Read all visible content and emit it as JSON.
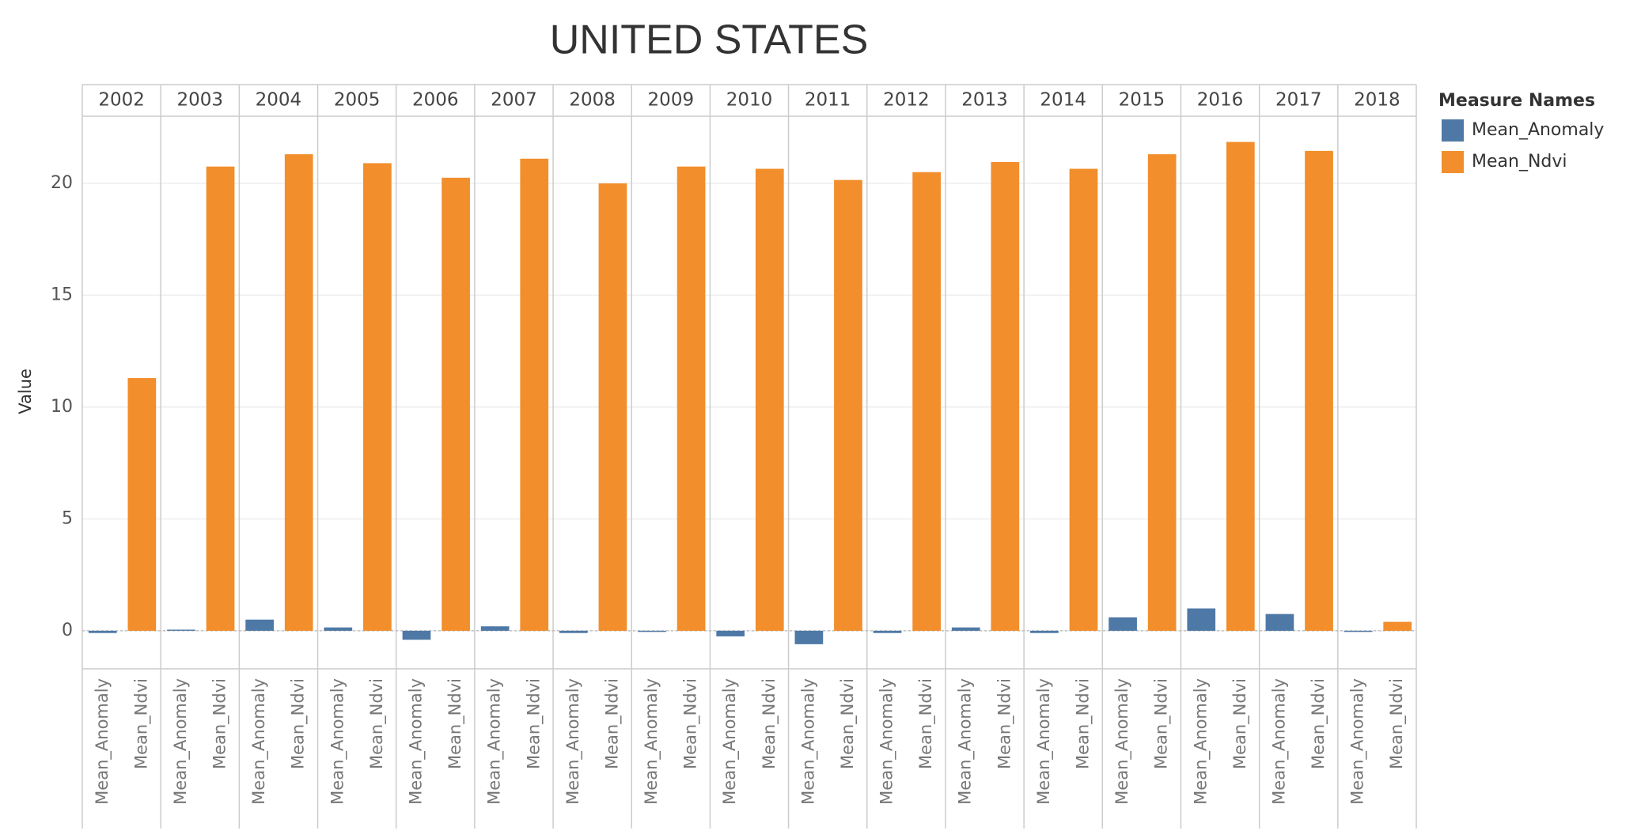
{
  "chart_data": {
    "type": "bar",
    "title": "UNITED STATES",
    "ylabel": "Value",
    "legend_title": "Measure Names",
    "categories": [
      "2002",
      "2003",
      "2004",
      "2005",
      "2006",
      "2007",
      "2008",
      "2009",
      "2010",
      "2011",
      "2012",
      "2013",
      "2014",
      "2015",
      "2016",
      "2017",
      "2018"
    ],
    "series": [
      {
        "name": "Mean_Anomaly",
        "color": "#4e79a7",
        "values": [
          -0.1,
          0.05,
          0.5,
          0.15,
          -0.4,
          0.2,
          -0.1,
          -0.05,
          -0.25,
          -0.6,
          -0.1,
          0.15,
          -0.1,
          0.6,
          1.0,
          0.75,
          -0.05
        ]
      },
      {
        "name": "Mean_Ndvi",
        "color": "#f28e2b",
        "values": [
          11.3,
          20.75,
          21.3,
          20.9,
          20.25,
          21.1,
          20.0,
          20.75,
          20.65,
          20.15,
          20.5,
          20.95,
          20.65,
          21.3,
          21.85,
          21.45,
          0.4
        ]
      }
    ],
    "ylim": [
      -1.7,
      23
    ],
    "yticks": [
      0,
      5,
      10,
      15,
      20
    ],
    "grid": true
  }
}
